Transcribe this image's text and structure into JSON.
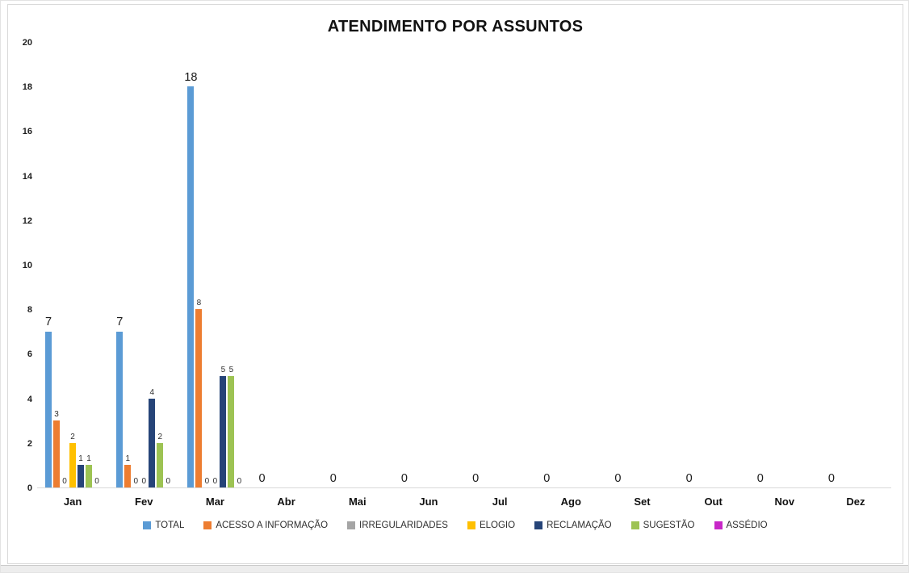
{
  "chart_data": {
    "type": "bar",
    "title": "ATENDIMENTO POR ASSUNTOS",
    "categories": [
      "Jan",
      "Fev",
      "Mar",
      "Abr",
      "Mai",
      "Jun",
      "Jul",
      "Ago",
      "Set",
      "Out",
      "Nov",
      "Dez"
    ],
    "series": [
      {
        "name": "TOTAL",
        "color": "#5B9BD5",
        "values": [
          7,
          7,
          18,
          0,
          0,
          0,
          0,
          0,
          0,
          0,
          0,
          0
        ]
      },
      {
        "name": "ACESSO A INFORMAÇÃO",
        "color": "#ED7D31",
        "values": [
          3,
          1,
          8,
          0,
          0,
          0,
          0,
          0,
          0,
          0,
          0,
          0
        ]
      },
      {
        "name": "IRREGULARIDADES",
        "color": "#A5A5A5",
        "values": [
          0,
          0,
          0,
          0,
          0,
          0,
          0,
          0,
          0,
          0,
          0,
          0
        ]
      },
      {
        "name": "ELOGIO",
        "color": "#FFC000",
        "values": [
          2,
          0,
          0,
          0,
          0,
          0,
          0,
          0,
          0,
          0,
          0,
          0
        ]
      },
      {
        "name": "RECLAMAÇÃO",
        "color": "#264478",
        "values": [
          1,
          4,
          5,
          0,
          0,
          0,
          0,
          0,
          0,
          0,
          0,
          0
        ]
      },
      {
        "name": "SUGESTÃO",
        "color": "#9DC353",
        "values": [
          1,
          2,
          5,
          0,
          0,
          0,
          0,
          0,
          0,
          0,
          0,
          0
        ]
      },
      {
        "name": "ASSÉDIO",
        "color": "#C827C8",
        "values": [
          0,
          0,
          0,
          0,
          0,
          0,
          0,
          0,
          0,
          0,
          0,
          0
        ]
      }
    ],
    "ylim": [
      0,
      20
    ],
    "ytick_step": 2,
    "grid": false,
    "legend_position": "bottom",
    "xlabel": "",
    "ylabel": ""
  }
}
